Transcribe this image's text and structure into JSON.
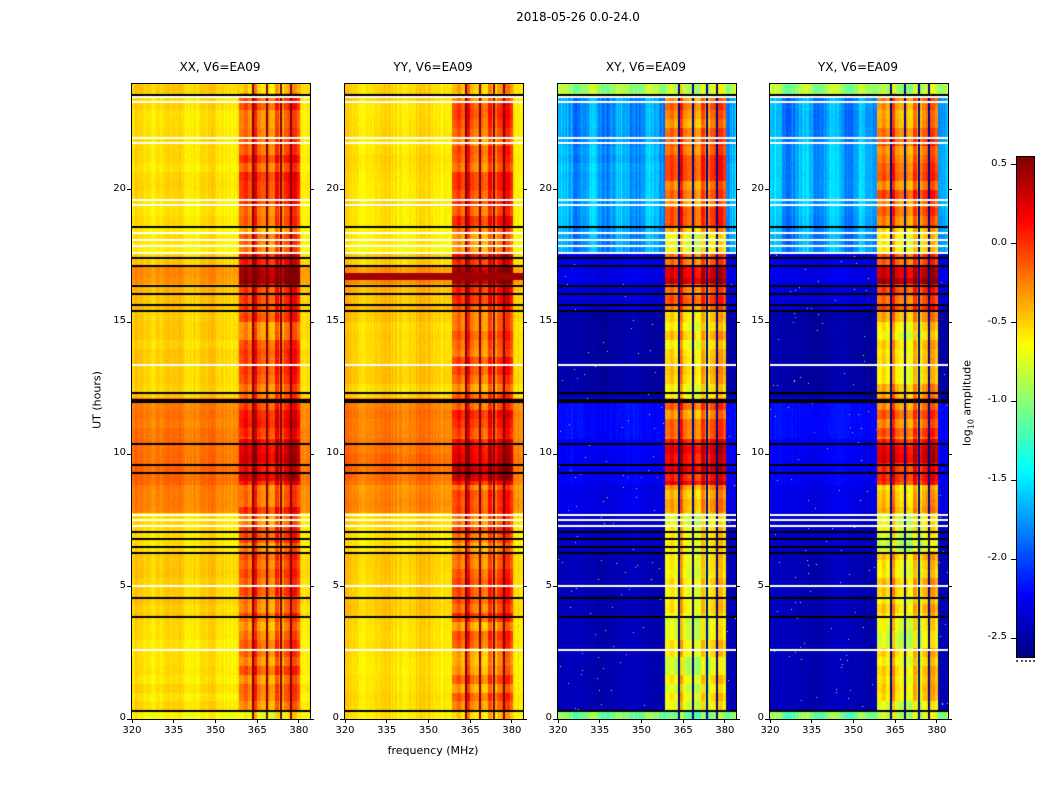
{
  "chart_data": {
    "type": "heatmap",
    "title": "2018-05-26 0.0-24.0",
    "xlabel": "frequency (MHz)",
    "ylabel": "UT (hours)",
    "xlim": [
      320,
      384
    ],
    "ylim": [
      0,
      24
    ],
    "x_ticks": [
      320,
      335,
      350,
      365,
      380
    ],
    "y_ticks": [
      0,
      5,
      10,
      15,
      20
    ],
    "colormap": "jet",
    "grid": false,
    "colorbar": {
      "label": "log10 amplitude",
      "label_log": "log",
      "label_sub": "10",
      "label_rest": " amplitude",
      "ticks": [
        "0.5",
        "0.0",
        "-0.5",
        "-1.0",
        "-1.5",
        "-2.0",
        "-2.5"
      ],
      "vmin": -2.62,
      "vmax": 0.55
    },
    "panels": [
      {
        "title": "XX, V6=EA09",
        "pol": "XX",
        "kind": "parallel"
      },
      {
        "title": "YY, V6=EA09",
        "pol": "YY",
        "kind": "parallel"
      },
      {
        "title": "XY, V6=EA09",
        "pol": "XY",
        "kind": "cross"
      },
      {
        "title": "YX, V6=EA09",
        "pol": "YX",
        "kind": "cross"
      }
    ],
    "rfi_band": {
      "f0": 358.5,
      "f1": 380.5,
      "block_width_mhz": 1.6,
      "dark_lines_mhz": [
        363.5,
        368.5,
        373.5,
        377.3
      ],
      "dark_line_width": 0.7
    },
    "narrow_line": {
      "f": 360.2,
      "t_max": 7.5,
      "value": -1.4
    },
    "time_segments": [
      {
        "t0": 0.0,
        "t1": 0.3,
        "par": -0.6,
        "cross": -1.05,
        "par_rfi": -0.45,
        "cross_rfi": -0.9
      },
      {
        "t0": 0.3,
        "t1": 3.85,
        "par": -0.55,
        "cross": -2.45,
        "par_rfi": -0.18,
        "cross_rfi": -0.6
      },
      {
        "t0": 3.85,
        "t1": 6.25,
        "par": -0.5,
        "cross": -2.45,
        "par_rfi": -0.05,
        "cross_rfi": -0.5
      },
      {
        "t0": 6.25,
        "t1": 7.8,
        "par": -0.55,
        "cross": -2.4,
        "par_rfi": -0.12,
        "cross_rfi": -0.65
      },
      {
        "t0": 7.8,
        "t1": 8.85,
        "par": -0.27,
        "cross": -2.3,
        "par_rfi": -0.02,
        "cross_rfi": -0.35
      },
      {
        "t0": 8.85,
        "t1": 10.6,
        "par": -0.2,
        "cross": -2.25,
        "par_rfi": 0.28,
        "cross_rfi": 0.18
      },
      {
        "t0": 10.6,
        "t1": 12.15,
        "par": -0.23,
        "cross": -2.2,
        "par_rfi": 0.05,
        "cross_rfi": -0.15
      },
      {
        "t0": 12.15,
        "t1": 15.45,
        "par": -0.5,
        "cross": -2.5,
        "par_rfi": -0.12,
        "cross_rfi": -0.45
      },
      {
        "t0": 15.45,
        "t1": 16.45,
        "par": -0.45,
        "cross": -2.35,
        "par_rfi": 0.05,
        "cross_rfi": -0.05
      },
      {
        "t0": 16.45,
        "t1": 17.1,
        "par": -0.3,
        "cross": -2.3,
        "par_rfi": 0.42,
        "cross_rfi": 0.42
      },
      {
        "t0": 17.1,
        "t1": 17.6,
        "par": -0.5,
        "cross": -2.3,
        "par_rfi": 0.1,
        "cross_rfi": 0.0
      },
      {
        "t0": 17.6,
        "t1": 18.6,
        "par": -0.6,
        "cross": -1.75,
        "par_rfi": -0.2,
        "cross_rfi": -0.5
      },
      {
        "t0": 18.6,
        "t1": 21.7,
        "par": -0.55,
        "cross": -1.7,
        "par_rfi": -0.03,
        "cross_rfi": -0.12
      },
      {
        "t0": 21.7,
        "t1": 23.6,
        "par": -0.55,
        "cross": -1.75,
        "par_rfi": -0.08,
        "cross_rfi": -0.2
      },
      {
        "t0": 23.6,
        "t1": 24.01,
        "par": -0.5,
        "cross": -0.95,
        "par_rfi": -0.3,
        "cross_rfi": -0.7
      }
    ],
    "hot_rows": [
      {
        "panel": "YY",
        "t0": 16.6,
        "t1": 16.85,
        "value": 0.45
      }
    ],
    "black_lines": [
      0.35,
      3.9,
      4.6,
      6.3,
      6.55,
      6.85,
      7.1,
      9.35,
      9.65,
      10.45,
      12.35,
      15.45,
      15.7,
      16.1,
      16.4,
      17.15,
      17.45,
      18.65,
      23.62
    ],
    "thick_black_lines": [
      {
        "t": 12.1,
        "h": 0.15
      }
    ],
    "white_lines": [
      2.65,
      5.05,
      7.35,
      7.55,
      7.75,
      13.4,
      17.65,
      17.9,
      18.15,
      18.4,
      19.45,
      19.65,
      21.8,
      22.0,
      23.35,
      23.55
    ]
  }
}
